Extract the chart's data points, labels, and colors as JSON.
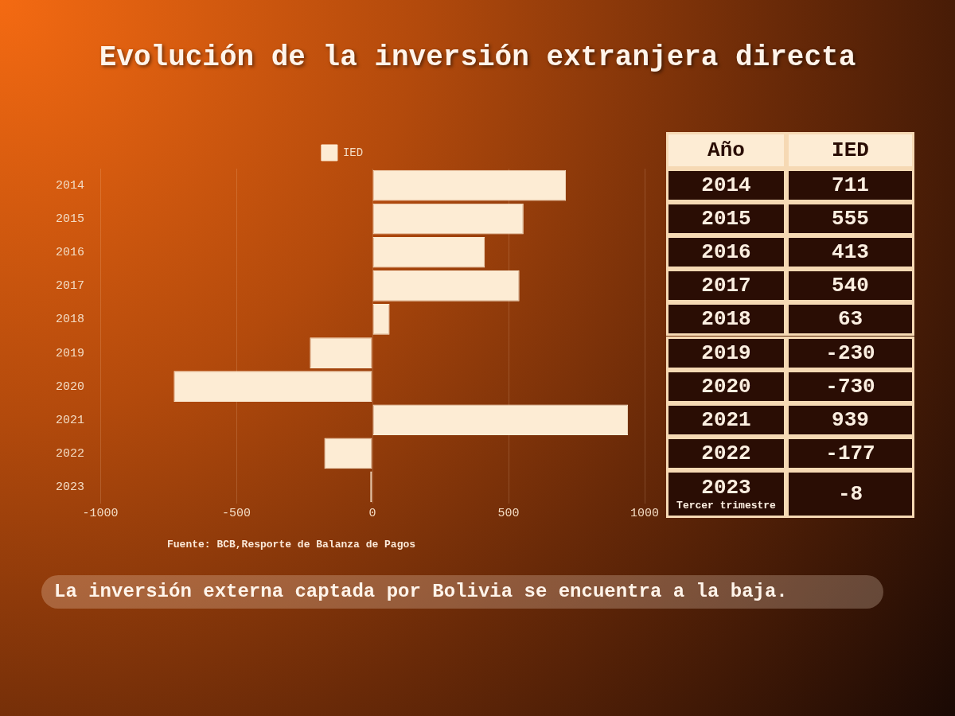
{
  "chart_data": {
    "type": "bar",
    "orientation": "horizontal",
    "title": "Evolución de la inversión extranjera directa",
    "categories": [
      "2014",
      "2015",
      "2016",
      "2017",
      "2018",
      "2019",
      "2020",
      "2021",
      "2022",
      "2023"
    ],
    "series": [
      {
        "name": "IED",
        "color": "#fdecd4",
        "values": [
          711,
          555,
          413,
          540,
          63,
          -230,
          -730,
          939,
          -177,
          -8
        ],
        "value_labels": [
          "711",
          "555",
          "413",
          "540",
          "63",
          "-230",
          "-730",
          "939",
          "-177",
          "-8"
        ]
      }
    ],
    "xlim": [
      -1000,
      1000
    ],
    "xticks": [
      -1000,
      -500,
      0,
      500,
      1000
    ],
    "grid": "x",
    "legend": "top",
    "annotations": [
      "Fuente: BCB,Resporte de Balanza de Pagos",
      "La inversión externa captada por Bolivia se encuentra a la baja.",
      "Año",
      "Tercer trimestre"
    ]
  }
}
